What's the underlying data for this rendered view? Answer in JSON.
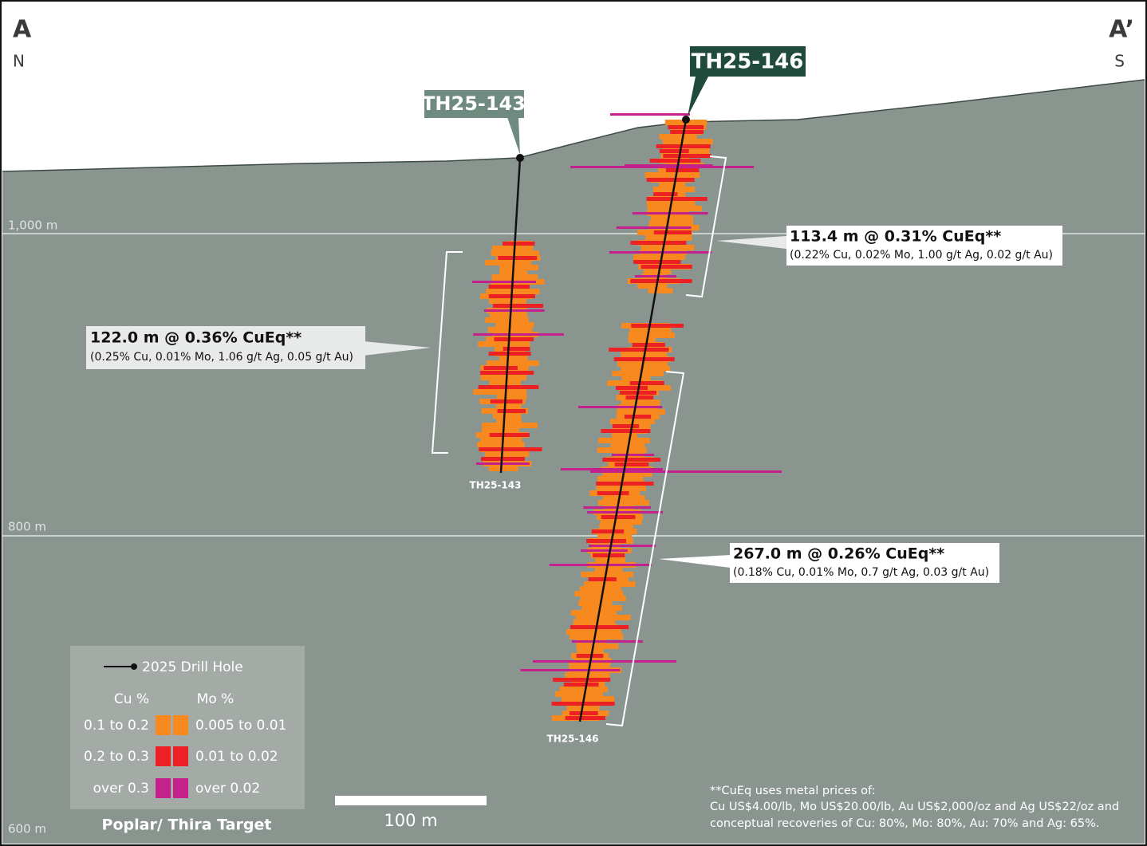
{
  "section": {
    "start_label": "A",
    "start_direction": "N",
    "end_label": "A’",
    "end_direction": "S"
  },
  "elevations": [
    "1,000 m",
    "800 m",
    "600 m"
  ],
  "drill_holes": [
    "TH25-143",
    "TH25-146"
  ],
  "intercepts": [
    {
      "headline": "122.0 m @ 0.36% CuEq**",
      "detail": "(0.25% Cu, 0.01% Mo, 1.06 g/t Ag, 0.05 g/t Au)"
    },
    {
      "headline": "113.4 m @ 0.31% CuEq**",
      "detail": "(0.22% Cu, 0.02% Mo, 1.00 g/t Ag, 0.02 g/t Au)"
    },
    {
      "headline": "267.0 m @ 0.26% CuEq**",
      "detail": "(0.18% Cu, 0.01% Mo, 0.7 g/t Ag, 0.03 g/t Au)"
    }
  ],
  "legend": {
    "drill_hole": "2025 Drill Hole",
    "cu_header": "Cu %",
    "mo_header": "Mo %",
    "rows": [
      [
        "0.1 to 0.2",
        "0.005 to 0.01"
      ],
      [
        "0.2 to 0.3",
        "0.01 to 0.02"
      ],
      [
        "over 0.3",
        "over 0.02"
      ]
    ],
    "target": "Poplar/ Thira Target"
  },
  "scale_bar": "100 m",
  "footnote": [
    "**CuEq uses metal prices of:",
    "Cu US$4.00/lb, Mo US$20.00/lb, Au US$2,000/oz and Ag US$22/oz and",
    "conceptual recoveries of Cu: 80%, Mo: 80%, Au: 70% and Ag: 65%."
  ]
}
